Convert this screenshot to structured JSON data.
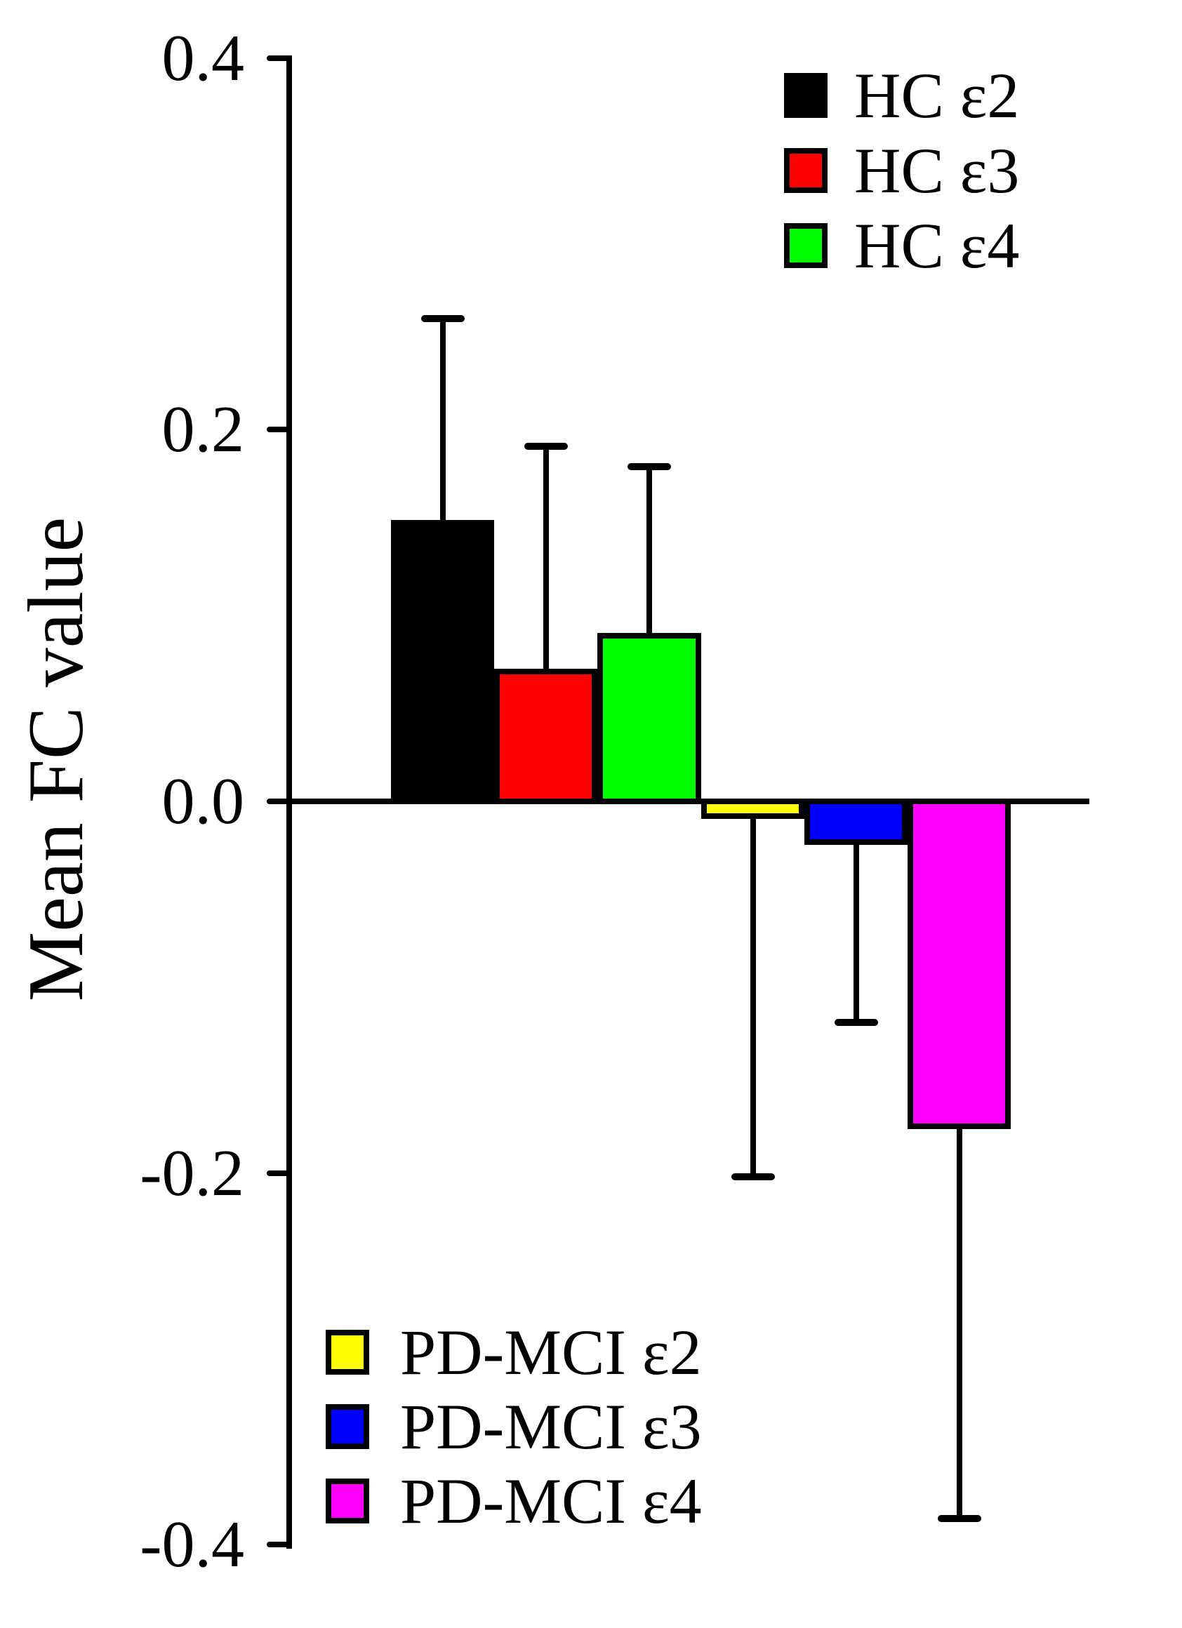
{
  "chart_data": {
    "type": "bar",
    "title": "",
    "xlabel": "",
    "ylabel": "Mean FC value",
    "ylim": [
      -0.4,
      0.4
    ],
    "y_ticks": [
      0.4,
      0.2,
      0.0,
      -0.2,
      -0.4
    ],
    "y_tick_labels": [
      "0.4",
      "0.2",
      "0.0",
      "-0.2",
      "-0.4"
    ],
    "grid": false,
    "legend_positions": {
      "hc": "top-right",
      "pd_mci": "bottom-left"
    },
    "groups": [
      {
        "label": "HC ε2",
        "color": "#000000",
        "value": 0.15,
        "error_tip": 0.26
      },
      {
        "label": "HC ε3",
        "color": "#FF0000",
        "value": 0.07,
        "error_tip": 0.191
      },
      {
        "label": "HC ε4",
        "color": "#00FF00",
        "value": 0.089,
        "error_tip": 0.18
      },
      {
        "label": "PD-MCI ε2",
        "color": "#FFFF00",
        "value": -0.008,
        "error_tip": -0.202
      },
      {
        "label": "PD-MCI ε3",
        "color": "#0000FF",
        "value": -0.022,
        "error_tip": -0.119
      },
      {
        "label": "PD-MCI ε4",
        "color": "#FF00FF",
        "value": -0.175,
        "error_tip": -0.386
      }
    ]
  }
}
